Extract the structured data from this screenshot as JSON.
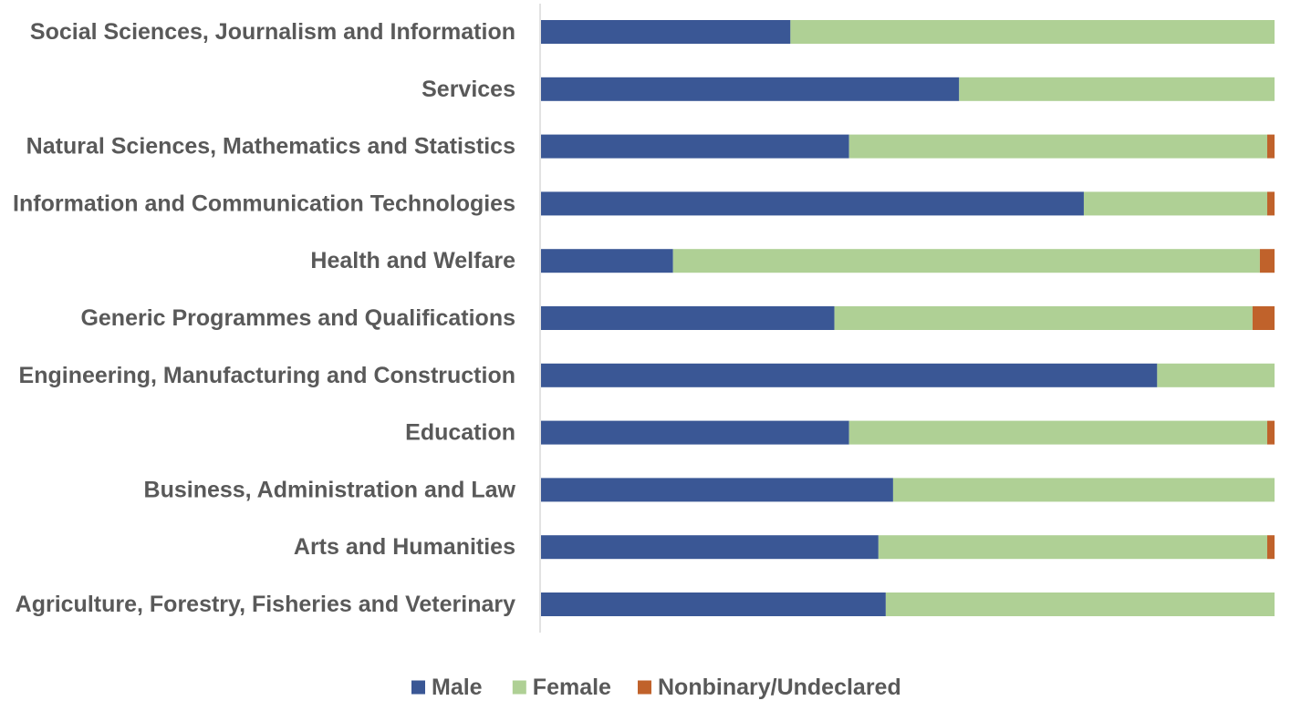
{
  "chart_data": {
    "type": "bar",
    "orientation": "horizontal",
    "stacked": "100%",
    "categories": [
      "Social Sciences, Journalism and Information",
      "Services",
      "Natural Sciences, Mathematics and Statistics",
      "Information and Communication Technologies",
      "Health and Welfare",
      "Generic Programmes and Qualifications",
      "Engineering, Manufacturing and Construction",
      "Education",
      "Business, Administration and Law",
      "Arts and Humanities",
      "Agriculture, Forestry, Fisheries and Veterinary"
    ],
    "series": [
      {
        "name": "Male",
        "color": "#3a5795",
        "values": [
          34,
          57,
          42,
          74,
          18,
          40,
          84,
          42,
          48,
          46,
          47
        ]
      },
      {
        "name": "Female",
        "color": "#afd095",
        "values": [
          66,
          43,
          57,
          25,
          80,
          57,
          16,
          57,
          52,
          53,
          53
        ]
      },
      {
        "name": "Nonbinary/Undeclared",
        "color": "#c0622b",
        "values": [
          0,
          0,
          1,
          1,
          2,
          3,
          0,
          1,
          0,
          1,
          0
        ]
      }
    ],
    "xlim": [
      0,
      100
    ],
    "grid": false,
    "legend_position": "bottom",
    "title": "",
    "xlabel": "",
    "ylabel": ""
  }
}
